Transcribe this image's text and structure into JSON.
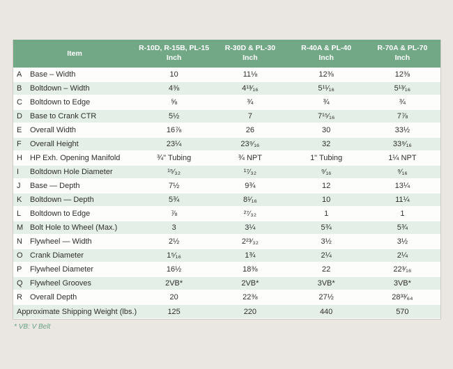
{
  "chart_data": {
    "type": "table",
    "header": {
      "item": "Item",
      "cols": [
        {
          "models": "R-10D, R-15B, PL-15",
          "unit": "Inch"
        },
        {
          "models": "R-30D & PL-30",
          "unit": "Inch"
        },
        {
          "models": "R-40A & PL-40",
          "unit": "Inch"
        },
        {
          "models": "R-70A & PL-70",
          "unit": "Inch"
        }
      ]
    },
    "rows": [
      {
        "letter": "A",
        "item": "Base – Width",
        "values": [
          "10",
          "11⅛",
          "12⅜",
          "12⅜"
        ]
      },
      {
        "letter": "B",
        "item": "Boltdown – Width",
        "values": [
          "4⅜",
          "4¹³⁄₁₆",
          "5¹¹⁄₁₆",
          "5¹³⁄₁₆"
        ]
      },
      {
        "letter": "C",
        "item": "Boltdown to Edge",
        "values": [
          "⅝",
          "¾",
          "¾",
          "¾"
        ]
      },
      {
        "letter": "D",
        "item": "Base to Crank CTR",
        "values": [
          "5½",
          "7",
          "7¹⁵⁄₁₆",
          "7⅞"
        ]
      },
      {
        "letter": "E",
        "item": "Overall Width",
        "values": [
          "16⅞",
          "26",
          "30",
          "33½"
        ]
      },
      {
        "letter": "F",
        "item": "Overall Height",
        "values": [
          "23¼",
          "23⁹⁄₁₆",
          "32",
          "33⁹⁄₁₆"
        ]
      },
      {
        "letter": "H",
        "item": "HP Exh. Opening Manifold",
        "values": [
          "¾\" Tubing",
          "¾ NPT",
          "1\" Tubing",
          "1¼ NPT"
        ]
      },
      {
        "letter": "I",
        "item": "Boltdown Hole Diameter",
        "values": [
          "¹⁵⁄₃₂",
          "¹⁷⁄₃₂",
          "⁹⁄₁₆",
          "⁹⁄₁₆"
        ]
      },
      {
        "letter": "J",
        "item": "Base — Depth",
        "values": [
          "7½",
          "9¾",
          "12",
          "13¼"
        ]
      },
      {
        "letter": "K",
        "item": "Boltdown — Depth",
        "values": [
          "5¾",
          "8¹⁄₁₆",
          "10",
          "11¼"
        ]
      },
      {
        "letter": "L",
        "item": "Boltdown to Edge",
        "values": [
          "⅞",
          "²⁷⁄₃₂",
          "1",
          "1"
        ]
      },
      {
        "letter": "M",
        "item": "Bolt Hole to Wheel (Max.)",
        "values": [
          "3",
          "3¼",
          "5¾",
          "5¾"
        ]
      },
      {
        "letter": "N",
        "item": "Flywheel — Width",
        "values": [
          "2½",
          "2²³⁄₃₂",
          "3½",
          "3½"
        ]
      },
      {
        "letter": "O",
        "item": "Crank Diameter",
        "values": [
          "1⁵⁄₁₆",
          "1¾",
          "2¼",
          "2¼"
        ]
      },
      {
        "letter": "P",
        "item": "Flywheel Diameter",
        "values": [
          "16½",
          "18⅜",
          "22",
          "22³⁄₁₆"
        ]
      },
      {
        "letter": "Q",
        "item": "Flywheel Grooves",
        "values": [
          "2VB*",
          "2VB*",
          "3VB*",
          "3VB*"
        ]
      },
      {
        "letter": "R",
        "item": "Overall Depth",
        "values": [
          "20",
          "22⅜",
          "27½",
          "28³³⁄₆₄"
        ]
      }
    ],
    "shipping_row": {
      "label": "Approximate Shipping Weight (lbs.)",
      "values": [
        "125",
        "220",
        "440",
        "570"
      ]
    },
    "footnote": "* VB: V Belt"
  },
  "colors": {
    "page_bg": "#eae6e2",
    "header_bg": "#72a885",
    "stripe_bg": "#e4efe8",
    "row_bg": "#fdfdfc",
    "text_dark": "#2f2e2d",
    "footnote_green": "#69a183",
    "border_gray": "#cdc9c5"
  }
}
